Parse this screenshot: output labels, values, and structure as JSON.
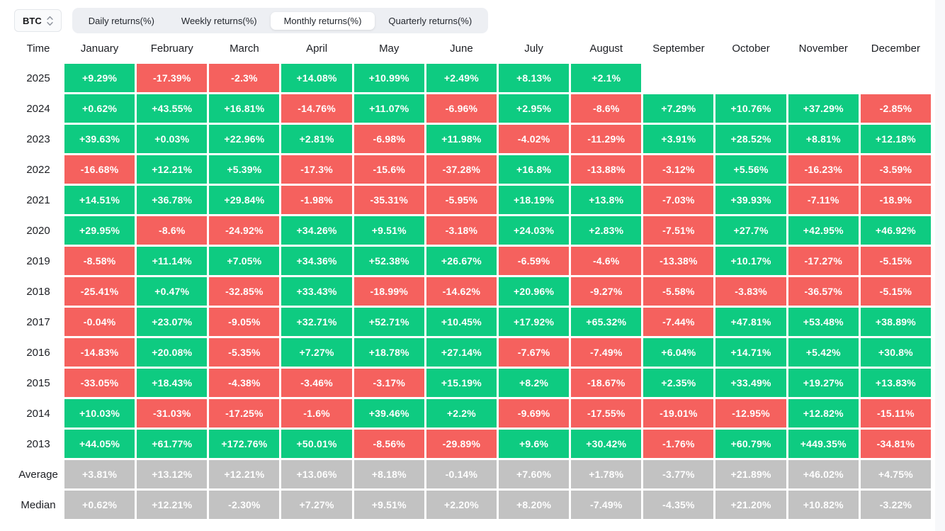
{
  "controls": {
    "symbol": "BTC",
    "tabs": [
      {
        "label": "Daily returns(%)",
        "active": false
      },
      {
        "label": "Weekly returns(%)",
        "active": false
      },
      {
        "label": "Monthly returns(%)",
        "active": true
      },
      {
        "label": "Quarterly returns(%)",
        "active": false
      }
    ]
  },
  "colors": {
    "positive": "#0ECB81",
    "negative": "#F5615E",
    "stat": "#C2C2C2",
    "tabbar_bg": "#EDEFF3",
    "right_strip": "#F7F8FA"
  },
  "chart_data": {
    "type": "heatmap",
    "title": "Monthly returns(%)",
    "row_header": "Time",
    "columns": [
      "January",
      "February",
      "March",
      "April",
      "May",
      "June",
      "July",
      "August",
      "September",
      "October",
      "November",
      "December"
    ],
    "rows": [
      {
        "label": "2025",
        "type": "year",
        "values": [
          "+9.29%",
          "-17.39%",
          "-2.3%",
          "+14.08%",
          "+10.99%",
          "+2.49%",
          "+8.13%",
          "+2.1%",
          null,
          null,
          null,
          null
        ]
      },
      {
        "label": "2024",
        "type": "year",
        "values": [
          "+0.62%",
          "+43.55%",
          "+16.81%",
          "-14.76%",
          "+11.07%",
          "-6.96%",
          "+2.95%",
          "-8.6%",
          "+7.29%",
          "+10.76%",
          "+37.29%",
          "-2.85%"
        ]
      },
      {
        "label": "2023",
        "type": "year",
        "values": [
          "+39.63%",
          "+0.03%",
          "+22.96%",
          "+2.81%",
          "-6.98%",
          "+11.98%",
          "-4.02%",
          "-11.29%",
          "+3.91%",
          "+28.52%",
          "+8.81%",
          "+12.18%"
        ]
      },
      {
        "label": "2022",
        "type": "year",
        "values": [
          "-16.68%",
          "+12.21%",
          "+5.39%",
          "-17.3%",
          "-15.6%",
          "-37.28%",
          "+16.8%",
          "-13.88%",
          "-3.12%",
          "+5.56%",
          "-16.23%",
          "-3.59%"
        ]
      },
      {
        "label": "2021",
        "type": "year",
        "values": [
          "+14.51%",
          "+36.78%",
          "+29.84%",
          "-1.98%",
          "-35.31%",
          "-5.95%",
          "+18.19%",
          "+13.8%",
          "-7.03%",
          "+39.93%",
          "-7.11%",
          "-18.9%"
        ]
      },
      {
        "label": "2020",
        "type": "year",
        "values": [
          "+29.95%",
          "-8.6%",
          "-24.92%",
          "+34.26%",
          "+9.51%",
          "-3.18%",
          "+24.03%",
          "+2.83%",
          "-7.51%",
          "+27.7%",
          "+42.95%",
          "+46.92%"
        ]
      },
      {
        "label": "2019",
        "type": "year",
        "values": [
          "-8.58%",
          "+11.14%",
          "+7.05%",
          "+34.36%",
          "+52.38%",
          "+26.67%",
          "-6.59%",
          "-4.6%",
          "-13.38%",
          "+10.17%",
          "-17.27%",
          "-5.15%"
        ]
      },
      {
        "label": "2018",
        "type": "year",
        "values": [
          "-25.41%",
          "+0.47%",
          "-32.85%",
          "+33.43%",
          "-18.99%",
          "-14.62%",
          "+20.96%",
          "-9.27%",
          "-5.58%",
          "-3.83%",
          "-36.57%",
          "-5.15%"
        ]
      },
      {
        "label": "2017",
        "type": "year",
        "values": [
          "-0.04%",
          "+23.07%",
          "-9.05%",
          "+32.71%",
          "+52.71%",
          "+10.45%",
          "+17.92%",
          "+65.32%",
          "-7.44%",
          "+47.81%",
          "+53.48%",
          "+38.89%"
        ]
      },
      {
        "label": "2016",
        "type": "year",
        "values": [
          "-14.83%",
          "+20.08%",
          "-5.35%",
          "+7.27%",
          "+18.78%",
          "+27.14%",
          "-7.67%",
          "-7.49%",
          "+6.04%",
          "+14.71%",
          "+5.42%",
          "+30.8%"
        ]
      },
      {
        "label": "2015",
        "type": "year",
        "values": [
          "-33.05%",
          "+18.43%",
          "-4.38%",
          "-3.46%",
          "-3.17%",
          "+15.19%",
          "+8.2%",
          "-18.67%",
          "+2.35%",
          "+33.49%",
          "+19.27%",
          "+13.83%"
        ]
      },
      {
        "label": "2014",
        "type": "year",
        "values": [
          "+10.03%",
          "-31.03%",
          "-17.25%",
          "-1.6%",
          "+39.46%",
          "+2.2%",
          "-9.69%",
          "-17.55%",
          "-19.01%",
          "-12.95%",
          "+12.82%",
          "-15.11%"
        ]
      },
      {
        "label": "2013",
        "type": "year",
        "values": [
          "+44.05%",
          "+61.77%",
          "+172.76%",
          "+50.01%",
          "-8.56%",
          "-29.89%",
          "+9.6%",
          "+30.42%",
          "-1.76%",
          "+60.79%",
          "+449.35%",
          "-34.81%"
        ]
      },
      {
        "label": "Average",
        "type": "stat",
        "values": [
          "+3.81%",
          "+13.12%",
          "+12.21%",
          "+13.06%",
          "+8.18%",
          "-0.14%",
          "+7.60%",
          "+1.78%",
          "-3.77%",
          "+21.89%",
          "+46.02%",
          "+4.75%"
        ]
      },
      {
        "label": "Median",
        "type": "stat",
        "values": [
          "+0.62%",
          "+12.21%",
          "-2.30%",
          "+7.27%",
          "+9.51%",
          "+2.20%",
          "+8.20%",
          "-7.49%",
          "-4.35%",
          "+21.20%",
          "+10.82%",
          "-3.22%"
        ]
      }
    ]
  }
}
